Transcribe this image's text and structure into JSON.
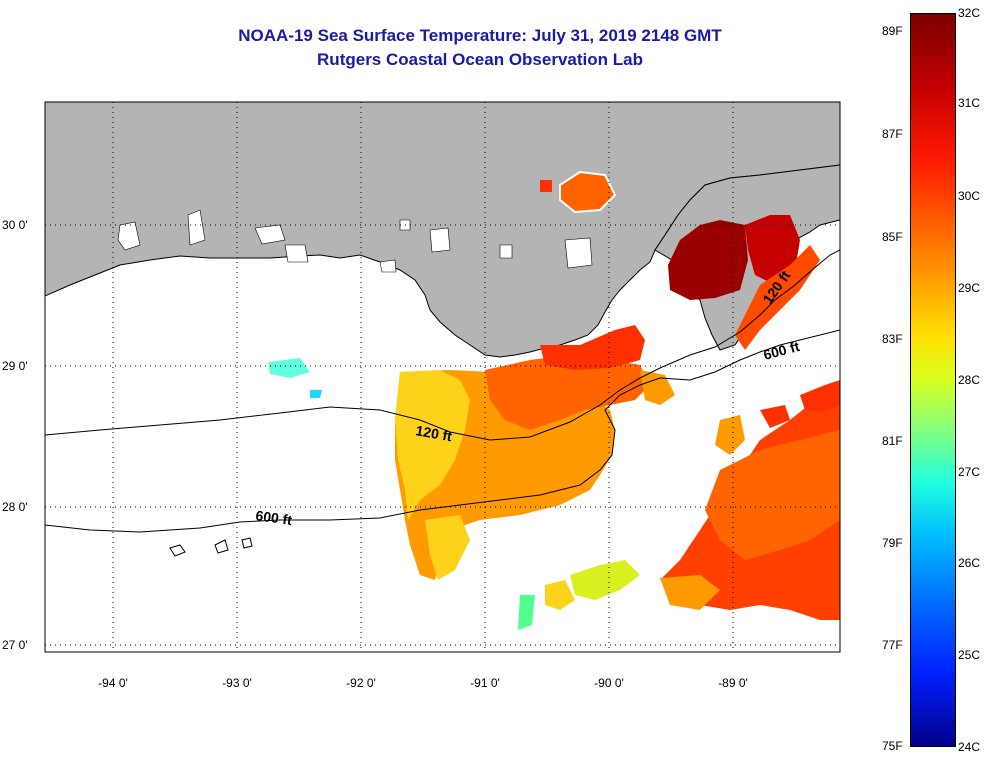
{
  "title_line1": "NOAA-19 Sea Surface Temperature:  July 31, 2019 2148 GMT",
  "title_line2": "Rutgers Coastal Ocean Observation Lab",
  "lat_labels": [
    "30 0'",
    "29 0'",
    "28 0'",
    "27 0'"
  ],
  "lon_labels": [
    "-94 0'",
    "-93 0'",
    "-92 0'",
    "-91 0'",
    "-90 0'",
    "-89 0'"
  ],
  "contours": {
    "c120_a": "120 ft",
    "c120_b": "120 ft",
    "c600_a": "600 ft",
    "c600_b": "600 ft"
  },
  "colorbar": {
    "f_labels": [
      "89F",
      "87F",
      "85F",
      "83F",
      "81F",
      "79F",
      "77F",
      "75F"
    ],
    "c_labels": [
      "32C",
      "31C",
      "30C",
      "29C",
      "28C",
      "27C",
      "26C",
      "25C",
      "24C"
    ]
  },
  "colors": {
    "land": "#b4b4b4",
    "title": "#1a1aa8",
    "warm": "#e02000",
    "hot": "#8a0000",
    "mild": "#ffd21a"
  }
}
